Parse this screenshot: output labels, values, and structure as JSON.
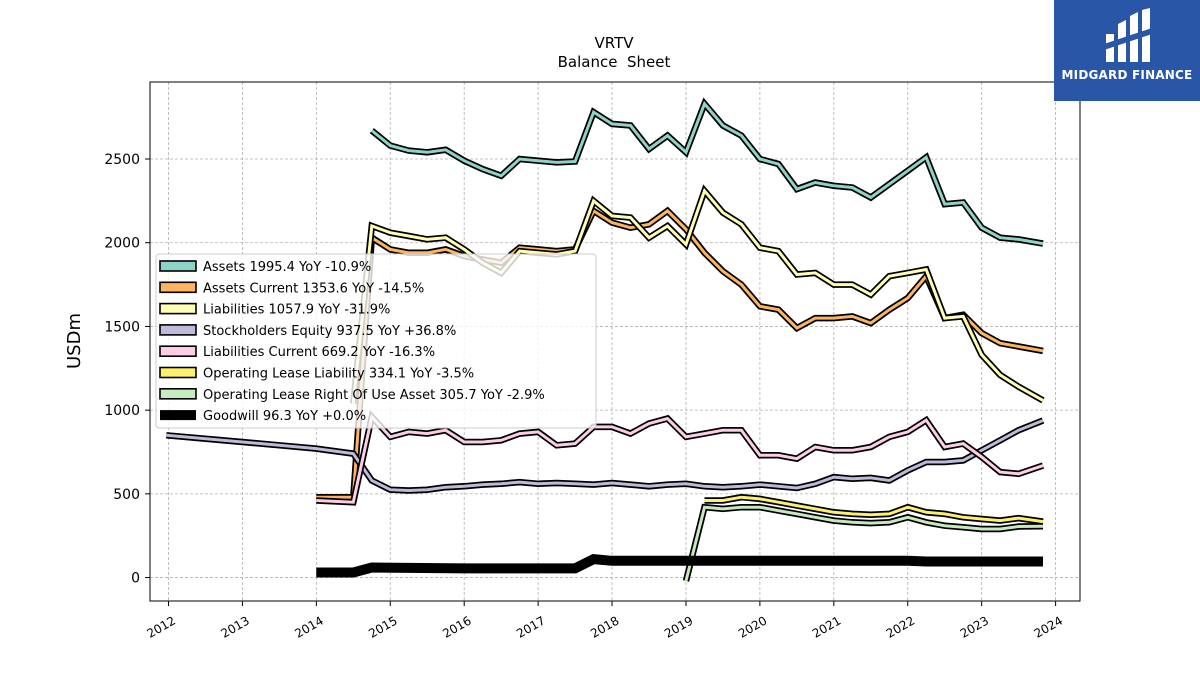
{
  "brand": {
    "name": "MIDGARD FINANCE",
    "bg_color": "#2a56a8"
  },
  "chart_data": {
    "type": "line",
    "title": "VRTV",
    "subtitle": "Balance  Sheet",
    "ylabel": "USDm",
    "xlabel": "",
    "xlim": [
      2011.75,
      2024.33
    ],
    "ylim": [
      -140,
      2960
    ],
    "x_ticks": [
      "2012",
      "2013",
      "2014",
      "2015",
      "2016",
      "2017",
      "2018",
      "2019",
      "2020",
      "2021",
      "2022",
      "2023",
      "2024"
    ],
    "y_ticks": [
      "0",
      "500",
      "1000",
      "1500",
      "2000",
      "2500"
    ],
    "grid": true,
    "legend_position": "upper-left",
    "series": [
      {
        "name": "Assets",
        "legend": "Assets  1995.4 YoY -10.9%",
        "color": "#8dd3c7",
        "width": 3,
        "points": [
          [
            2014.75,
            2670
          ],
          [
            2015.0,
            2580
          ],
          [
            2015.25,
            2550
          ],
          [
            2015.5,
            2540
          ],
          [
            2015.75,
            2555
          ],
          [
            2016.0,
            2490
          ],
          [
            2016.25,
            2440
          ],
          [
            2016.5,
            2400
          ],
          [
            2016.75,
            2500
          ],
          [
            2017.0,
            2490
          ],
          [
            2017.25,
            2480
          ],
          [
            2017.5,
            2485
          ],
          [
            2017.75,
            2780
          ],
          [
            2018.0,
            2710
          ],
          [
            2018.25,
            2700
          ],
          [
            2018.5,
            2560
          ],
          [
            2018.75,
            2640
          ],
          [
            2019.0,
            2540
          ],
          [
            2019.25,
            2830
          ],
          [
            2019.5,
            2700
          ],
          [
            2019.75,
            2640
          ],
          [
            2020.0,
            2500
          ],
          [
            2020.25,
            2470
          ],
          [
            2020.5,
            2320
          ],
          [
            2020.75,
            2360
          ],
          [
            2021.0,
            2340
          ],
          [
            2021.25,
            2330
          ],
          [
            2021.5,
            2270
          ],
          [
            2021.75,
            2350
          ],
          [
            2022.0,
            2430
          ],
          [
            2022.25,
            2510
          ],
          [
            2022.5,
            2230
          ],
          [
            2022.75,
            2240
          ],
          [
            2023.0,
            2090
          ],
          [
            2023.25,
            2030
          ],
          [
            2023.5,
            2020
          ],
          [
            2023.83,
            1995
          ]
        ]
      },
      {
        "name": "Assets Current",
        "legend": "Assets Current  1353.6 YoY -14.5%",
        "color": "#fdb462",
        "width": 3,
        "points": [
          [
            2014.0,
            480
          ],
          [
            2014.5,
            480
          ],
          [
            2014.75,
            2030
          ],
          [
            2015.0,
            1960
          ],
          [
            2015.25,
            1940
          ],
          [
            2015.5,
            1940
          ],
          [
            2015.75,
            1960
          ],
          [
            2016.0,
            1920
          ],
          [
            2016.25,
            1900
          ],
          [
            2016.5,
            1880
          ],
          [
            2016.75,
            1970
          ],
          [
            2017.0,
            1960
          ],
          [
            2017.25,
            1950
          ],
          [
            2017.5,
            1960
          ],
          [
            2017.75,
            2190
          ],
          [
            2018.0,
            2120
          ],
          [
            2018.25,
            2090
          ],
          [
            2018.5,
            2110
          ],
          [
            2018.75,
            2190
          ],
          [
            2019.0,
            2080
          ],
          [
            2019.25,
            1940
          ],
          [
            2019.5,
            1830
          ],
          [
            2019.75,
            1750
          ],
          [
            2020.0,
            1620
          ],
          [
            2020.25,
            1600
          ],
          [
            2020.5,
            1490
          ],
          [
            2020.75,
            1550
          ],
          [
            2021.0,
            1550
          ],
          [
            2021.25,
            1560
          ],
          [
            2021.5,
            1520
          ],
          [
            2021.75,
            1600
          ],
          [
            2022.0,
            1670
          ],
          [
            2022.25,
            1800
          ],
          [
            2022.5,
            1550
          ],
          [
            2022.75,
            1570
          ],
          [
            2023.0,
            1460
          ],
          [
            2023.25,
            1400
          ],
          [
            2023.5,
            1380
          ],
          [
            2023.83,
            1354
          ]
        ]
      },
      {
        "name": "Liabilities",
        "legend": "Liabilities  1057.9 YoY -31.9%",
        "color": "#ffffb3",
        "width": 3,
        "points": [
          [
            2014.5,
            1040
          ],
          [
            2014.75,
            2100
          ],
          [
            2015.0,
            2060
          ],
          [
            2015.25,
            2040
          ],
          [
            2015.5,
            2020
          ],
          [
            2015.75,
            2030
          ],
          [
            2016.0,
            1960
          ],
          [
            2016.25,
            1880
          ],
          [
            2016.5,
            1820
          ],
          [
            2016.75,
            1950
          ],
          [
            2017.0,
            1940
          ],
          [
            2017.25,
            1930
          ],
          [
            2017.5,
            1950
          ],
          [
            2017.75,
            2250
          ],
          [
            2018.0,
            2160
          ],
          [
            2018.25,
            2150
          ],
          [
            2018.5,
            2030
          ],
          [
            2018.75,
            2100
          ],
          [
            2019.0,
            1990
          ],
          [
            2019.25,
            2310
          ],
          [
            2019.5,
            2180
          ],
          [
            2019.75,
            2110
          ],
          [
            2020.0,
            1970
          ],
          [
            2020.25,
            1950
          ],
          [
            2020.5,
            1810
          ],
          [
            2020.75,
            1820
          ],
          [
            2021.0,
            1750
          ],
          [
            2021.25,
            1750
          ],
          [
            2021.5,
            1690
          ],
          [
            2021.75,
            1800
          ],
          [
            2022.0,
            1820
          ],
          [
            2022.25,
            1840
          ],
          [
            2022.5,
            1550
          ],
          [
            2022.75,
            1560
          ],
          [
            2023.0,
            1330
          ],
          [
            2023.25,
            1210
          ],
          [
            2023.5,
            1140
          ],
          [
            2023.83,
            1058
          ]
        ]
      },
      {
        "name": "Stockholders Equity",
        "legend": "Stockholders Equity  937.5 YoY +36.8%",
        "color": "#bebada",
        "width": 3,
        "points": [
          [
            2011.97,
            850
          ],
          [
            2013.0,
            810
          ],
          [
            2013.5,
            790
          ],
          [
            2014.0,
            770
          ],
          [
            2014.5,
            740
          ],
          [
            2014.75,
            580
          ],
          [
            2015.0,
            525
          ],
          [
            2015.25,
            520
          ],
          [
            2015.5,
            525
          ],
          [
            2015.75,
            540
          ],
          [
            2016.0,
            545
          ],
          [
            2016.25,
            555
          ],
          [
            2016.5,
            560
          ],
          [
            2016.75,
            570
          ],
          [
            2017.0,
            560
          ],
          [
            2017.25,
            565
          ],
          [
            2017.5,
            560
          ],
          [
            2017.75,
            555
          ],
          [
            2018.0,
            565
          ],
          [
            2018.25,
            555
          ],
          [
            2018.5,
            545
          ],
          [
            2018.75,
            555
          ],
          [
            2019.0,
            560
          ],
          [
            2019.25,
            545
          ],
          [
            2019.5,
            540
          ],
          [
            2019.75,
            545
          ],
          [
            2020.0,
            555
          ],
          [
            2020.25,
            545
          ],
          [
            2020.5,
            535
          ],
          [
            2020.75,
            560
          ],
          [
            2021.0,
            600
          ],
          [
            2021.25,
            590
          ],
          [
            2021.5,
            595
          ],
          [
            2021.75,
            580
          ],
          [
            2022.0,
            640
          ],
          [
            2022.25,
            690
          ],
          [
            2022.5,
            690
          ],
          [
            2022.75,
            700
          ],
          [
            2023.0,
            760
          ],
          [
            2023.25,
            820
          ],
          [
            2023.5,
            880
          ],
          [
            2023.83,
            938
          ]
        ]
      },
      {
        "name": "Liabilities Current",
        "legend": "Liabilities Current  669.2 YoY -16.3%",
        "color": "#fccde5",
        "width": 3,
        "points": [
          [
            2014.0,
            460
          ],
          [
            2014.5,
            450
          ],
          [
            2014.75,
            960
          ],
          [
            2015.0,
            840
          ],
          [
            2015.25,
            870
          ],
          [
            2015.5,
            860
          ],
          [
            2015.75,
            880
          ],
          [
            2016.0,
            810
          ],
          [
            2016.25,
            810
          ],
          [
            2016.5,
            820
          ],
          [
            2016.75,
            860
          ],
          [
            2017.0,
            870
          ],
          [
            2017.25,
            790
          ],
          [
            2017.5,
            800
          ],
          [
            2017.75,
            900
          ],
          [
            2018.0,
            900
          ],
          [
            2018.25,
            860
          ],
          [
            2018.5,
            920
          ],
          [
            2018.75,
            950
          ],
          [
            2019.0,
            840
          ],
          [
            2019.25,
            860
          ],
          [
            2019.5,
            880
          ],
          [
            2019.75,
            880
          ],
          [
            2020.0,
            730
          ],
          [
            2020.25,
            730
          ],
          [
            2020.5,
            710
          ],
          [
            2020.75,
            780
          ],
          [
            2021.0,
            760
          ],
          [
            2021.25,
            760
          ],
          [
            2021.5,
            780
          ],
          [
            2021.75,
            840
          ],
          [
            2022.0,
            870
          ],
          [
            2022.25,
            940
          ],
          [
            2022.5,
            780
          ],
          [
            2022.75,
            800
          ],
          [
            2023.0,
            720
          ],
          [
            2023.25,
            630
          ],
          [
            2023.5,
            620
          ],
          [
            2023.83,
            669
          ]
        ]
      },
      {
        "name": "Operating Lease Liability",
        "legend": "Operating Lease Liability  334.1 YoY -3.5%",
        "color": "#fdf06f",
        "width": 3,
        "points": [
          [
            2019.25,
            460
          ],
          [
            2019.5,
            460
          ],
          [
            2019.75,
            480
          ],
          [
            2020.0,
            470
          ],
          [
            2020.25,
            450
          ],
          [
            2020.5,
            430
          ],
          [
            2020.75,
            410
          ],
          [
            2021.0,
            390
          ],
          [
            2021.25,
            380
          ],
          [
            2021.5,
            375
          ],
          [
            2021.75,
            380
          ],
          [
            2022.0,
            420
          ],
          [
            2022.25,
            390
          ],
          [
            2022.5,
            380
          ],
          [
            2022.75,
            360
          ],
          [
            2023.0,
            350
          ],
          [
            2023.25,
            340
          ],
          [
            2023.5,
            355
          ],
          [
            2023.83,
            334
          ]
        ]
      },
      {
        "name": "Operating Lease Right Of Use Asset",
        "legend": "Operating Lease Right Of Use Asset  305.7 YoY -2.9%",
        "color": "#c7e9c0",
        "width": 3,
        "points": [
          [
            2019.0,
            -20
          ],
          [
            2019.25,
            420
          ],
          [
            2019.5,
            410
          ],
          [
            2019.75,
            420
          ],
          [
            2020.0,
            420
          ],
          [
            2020.25,
            400
          ],
          [
            2020.5,
            380
          ],
          [
            2020.75,
            360
          ],
          [
            2021.0,
            340
          ],
          [
            2021.25,
            330
          ],
          [
            2021.5,
            325
          ],
          [
            2021.75,
            330
          ],
          [
            2022.0,
            360
          ],
          [
            2022.25,
            330
          ],
          [
            2022.5,
            310
          ],
          [
            2022.75,
            300
          ],
          [
            2023.0,
            290
          ],
          [
            2023.25,
            290
          ],
          [
            2023.5,
            305
          ],
          [
            2023.83,
            306
          ]
        ]
      },
      {
        "name": "Goodwill",
        "legend": "Goodwill  96.3 YoY +0.0%",
        "color": "#000000",
        "width": 8,
        "points": [
          [
            2014.0,
            30
          ],
          [
            2014.5,
            30
          ],
          [
            2014.75,
            60
          ],
          [
            2016.0,
            55
          ],
          [
            2017.0,
            55
          ],
          [
            2017.5,
            55
          ],
          [
            2017.75,
            110
          ],
          [
            2018.0,
            100
          ],
          [
            2018.5,
            100
          ],
          [
            2020.0,
            100
          ],
          [
            2022.0,
            100
          ],
          [
            2022.25,
            96
          ],
          [
            2023.83,
            96
          ]
        ]
      }
    ]
  }
}
